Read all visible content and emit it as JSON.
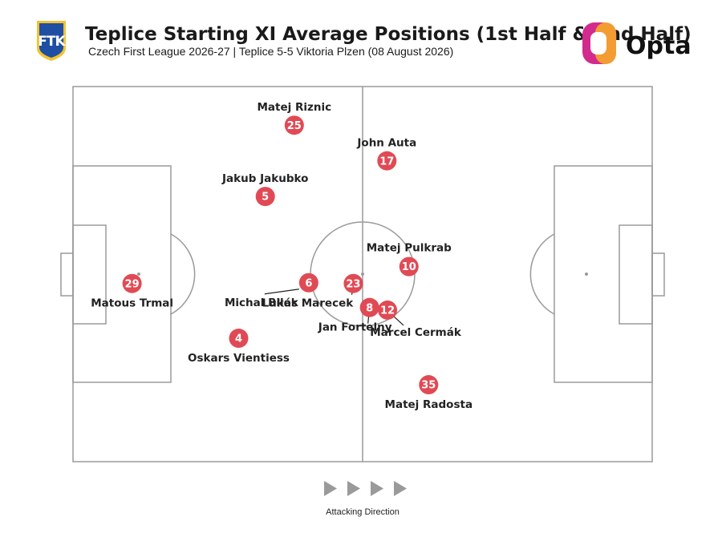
{
  "header": {
    "title": "Teplice Starting XI Average Positions (1st Half & 2nd Half)",
    "subtitle": "Czech First League 2026-27 | Teplice 5-5 Viktoria Plzen (08 August 2026)",
    "club_badge_text": "FTK",
    "brand_logo_text": "Opta"
  },
  "footer": {
    "attacking_direction_label": "Attacking Direction"
  },
  "colors": {
    "marker": "#e04a55",
    "pitch_line": "#9a9a9a",
    "badge_blue": "#1e4fa3",
    "badge_gold": "#f2c230",
    "arrow": "#9a9a9a"
  },
  "chart_data": {
    "type": "scatter",
    "title": "Teplice Starting XI Average Positions (1st Half & 2nd Half)",
    "xlim": [
      0,
      100
    ],
    "ylim": [
      0,
      100
    ],
    "attacking_direction": "left-to-right",
    "players": [
      {
        "number": "25",
        "name": "Matej Riznic",
        "x": 38.2,
        "y": 89.7
      },
      {
        "number": "17",
        "name": "John Auta",
        "x": 54.2,
        "y": 80.2
      },
      {
        "number": "5",
        "name": "Jakub Jakubko",
        "x": 33.2,
        "y": 70.7
      },
      {
        "number": "10",
        "name": "Matej Pulkrab",
        "x": 58.0,
        "y": 52.0
      },
      {
        "number": "29",
        "name": "Matous Trmal",
        "x": 10.2,
        "y": 47.5
      },
      {
        "number": "6",
        "name": "Michal Bilek",
        "x": 40.7,
        "y": 47.7
      },
      {
        "number": "23",
        "name": "Lukás Marecek",
        "x": 48.4,
        "y": 47.5
      },
      {
        "number": "8",
        "name": "Jan Fortelny",
        "x": 51.2,
        "y": 41.1
      },
      {
        "number": "12",
        "name": "Marcel Cermák",
        "x": 54.3,
        "y": 40.4
      },
      {
        "number": "4",
        "name": "Oskars Vientiess",
        "x": 28.6,
        "y": 32.9
      },
      {
        "number": "35",
        "name": "Matej Radosta",
        "x": 61.4,
        "y": 20.5
      }
    ]
  }
}
